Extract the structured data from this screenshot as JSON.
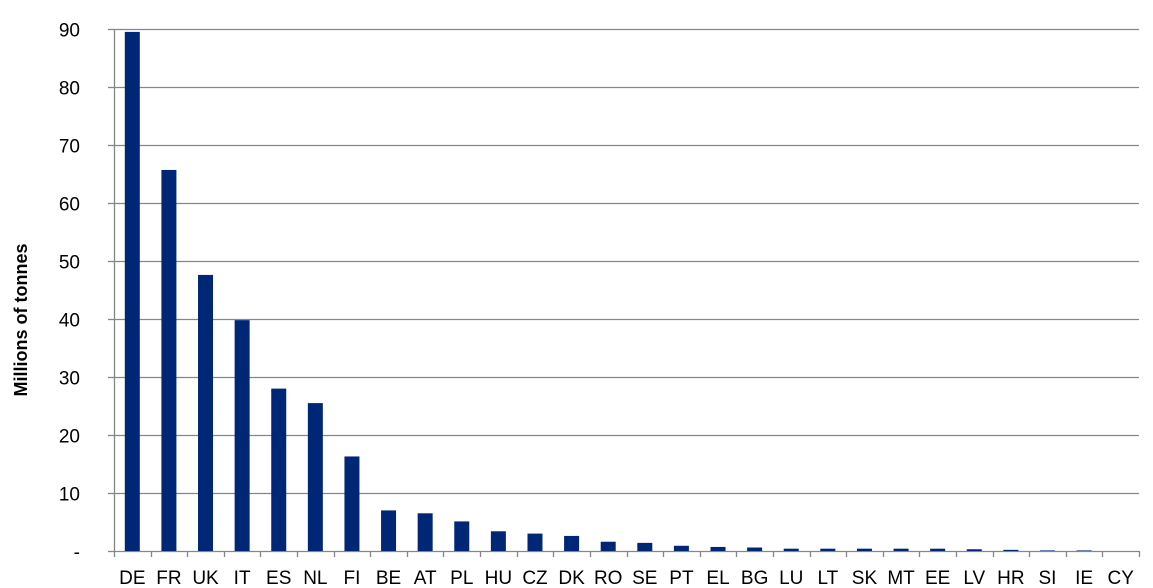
{
  "chart_data": {
    "type": "bar",
    "title": "",
    "xlabel": "",
    "ylabel": "Millions of tonnes",
    "ylim": [
      0,
      90
    ],
    "y_ticks": [
      0,
      10,
      20,
      30,
      40,
      50,
      60,
      70,
      80,
      90
    ],
    "y_tick_labels": [
      "-",
      "10",
      "20",
      "30",
      "40",
      "50",
      "60",
      "70",
      "80",
      "90"
    ],
    "grid": true,
    "legend": "none",
    "bar_color": "#002776",
    "categories": [
      "DE",
      "FR",
      "UK",
      "IT",
      "ES",
      "NL",
      "FI",
      "BE",
      "AT",
      "PL",
      "HU",
      "CZ",
      "DK",
      "RO",
      "SE",
      "PT",
      "EL",
      "BG",
      "LU",
      "LT",
      "SK",
      "MT",
      "EE",
      "LV",
      "HR",
      "SI",
      "IE",
      "CY"
    ],
    "values": [
      89.5,
      65.7,
      47.6,
      39.8,
      28.0,
      25.5,
      16.3,
      7.0,
      6.5,
      5.1,
      3.4,
      3.0,
      2.6,
      1.6,
      1.4,
      0.9,
      0.7,
      0.6,
      0.4,
      0.4,
      0.4,
      0.4,
      0.4,
      0.3,
      0.2,
      0.1,
      0.1,
      0.0
    ]
  }
}
